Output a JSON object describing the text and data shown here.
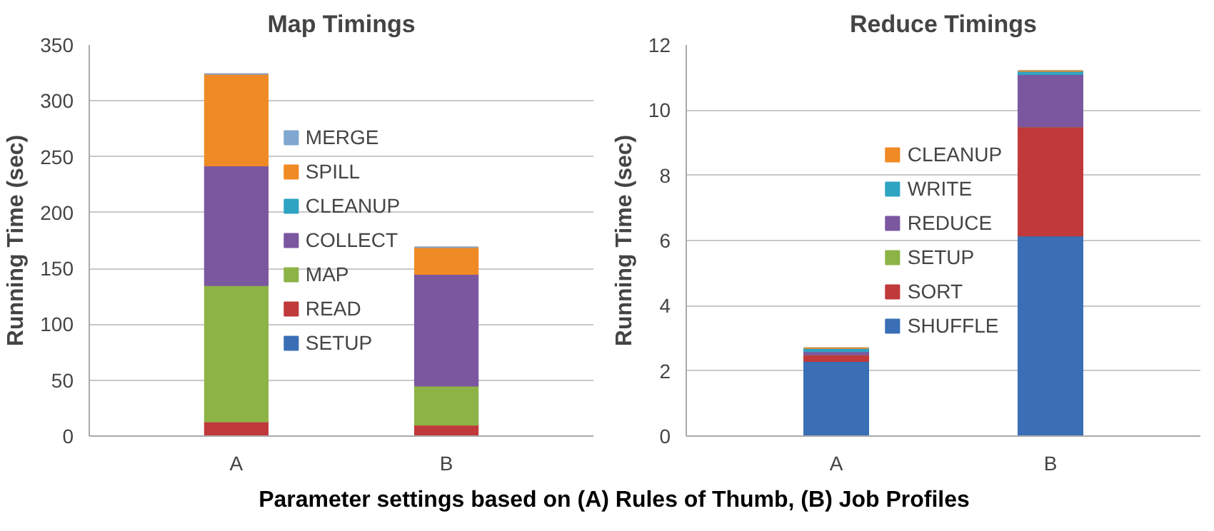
{
  "chart_data": [
    {
      "type": "bar",
      "stacked": true,
      "title": "Map Timings",
      "ylabel": "Running Time (sec)",
      "xlabel": "Parameter settings based on (A) Rules of Thumb, (B) Job Profiles",
      "categories": [
        "A",
        "B"
      ],
      "ylim": [
        0,
        350
      ],
      "yticks": [
        0,
        50,
        100,
        150,
        200,
        250,
        300,
        350
      ],
      "grid": "y",
      "legend": "center",
      "series": [
        {
          "name": "SETUP",
          "color": "#3a6fb6",
          "values": [
            0,
            0
          ]
        },
        {
          "name": "READ",
          "color": "#c0393b",
          "values": [
            13,
            10
          ]
        },
        {
          "name": "MAP",
          "color": "#8db347",
          "values": [
            122,
            35
          ]
        },
        {
          "name": "COLLECT",
          "color": "#7b57a0",
          "values": [
            107,
            100
          ]
        },
        {
          "name": "CLEANUP",
          "color": "#2fa3c2",
          "values": [
            0,
            0
          ]
        },
        {
          "name": "SPILL",
          "color": "#f08a24",
          "values": [
            82,
            24
          ]
        },
        {
          "name": "MERGE",
          "color": "#7fa7cf",
          "values": [
            0,
            0
          ]
        }
      ]
    },
    {
      "type": "bar",
      "stacked": true,
      "title": "Reduce Timings",
      "ylabel": "Running Time (sec)",
      "categories": [
        "A",
        "B"
      ],
      "ylim": [
        0,
        12
      ],
      "yticks": [
        0,
        2,
        4,
        6,
        8,
        10,
        12
      ],
      "grid": "y",
      "legend": "center",
      "series": [
        {
          "name": "SHUFFLE",
          "color": "#3a6fb6",
          "values": [
            2.3,
            6.15
          ]
        },
        {
          "name": "SORT",
          "color": "#c0393b",
          "values": [
            0.2,
            3.35
          ]
        },
        {
          "name": "SETUP",
          "color": "#8db347",
          "values": [
            0,
            0
          ]
        },
        {
          "name": "REDUCE",
          "color": "#7b57a0",
          "values": [
            0.1,
            1.6
          ]
        },
        {
          "name": "WRITE",
          "color": "#2fa3c2",
          "values": [
            0.1,
            0.1
          ]
        },
        {
          "name": "CLEANUP",
          "color": "#f08a24",
          "values": [
            0,
            0
          ]
        }
      ]
    }
  ]
}
